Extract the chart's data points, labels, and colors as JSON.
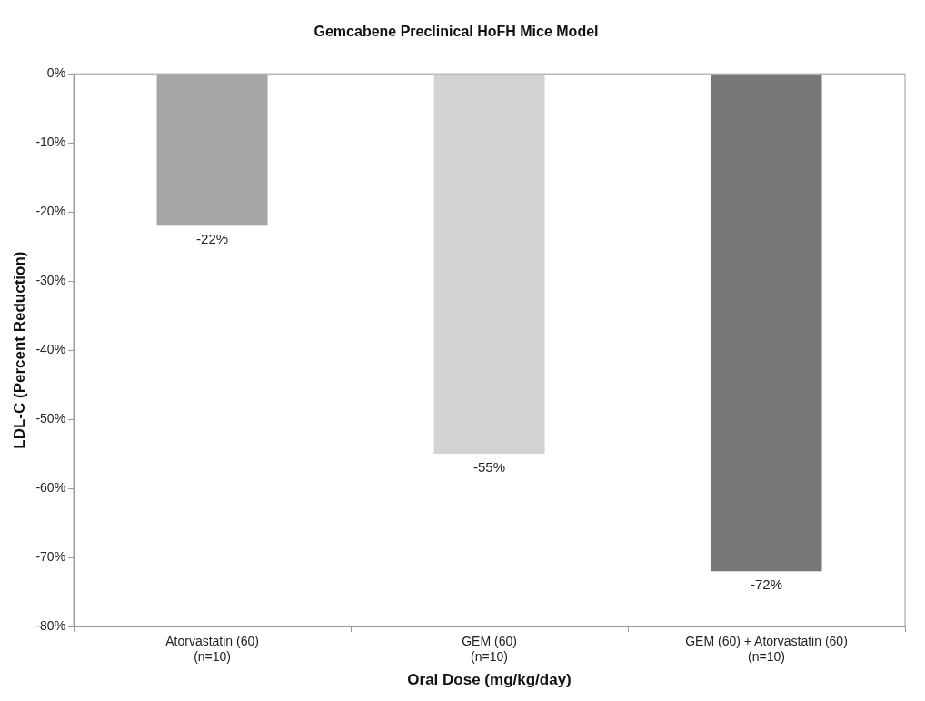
{
  "chart_data": {
    "type": "bar",
    "title": "Gemcabene Preclinical HoFH Mice Model",
    "xlabel": "Oral Dose (mg/kg/day)",
    "ylabel": "LDL-C (Percent Reduction)",
    "categories": [
      "Atorvastatin (60)\n(n=10)",
      "GEM (60)\n(n=10)",
      "GEM (60) + Atorvastatin (60)\n(n=10)"
    ],
    "values": [
      -22,
      -55,
      -72
    ],
    "colors": [
      "#a6a6a6",
      "#d3d3d3",
      "#777777"
    ],
    "value_labels": [
      "-22%",
      "-55%",
      "-72%"
    ],
    "ylim": [
      -80,
      0
    ],
    "yticks": [
      {
        "value": 0,
        "label": "0%"
      },
      {
        "value": -10,
        "label": "-10%"
      },
      {
        "value": -20,
        "label": "-20%"
      },
      {
        "value": -30,
        "label": "-30%"
      },
      {
        "value": -40,
        "label": "-40%"
      },
      {
        "value": -50,
        "label": "-50%"
      },
      {
        "value": -60,
        "label": "-60%"
      },
      {
        "value": -70,
        "label": "-70%"
      },
      {
        "value": -80,
        "label": "-80%"
      }
    ],
    "grid": false,
    "legend": false
  }
}
